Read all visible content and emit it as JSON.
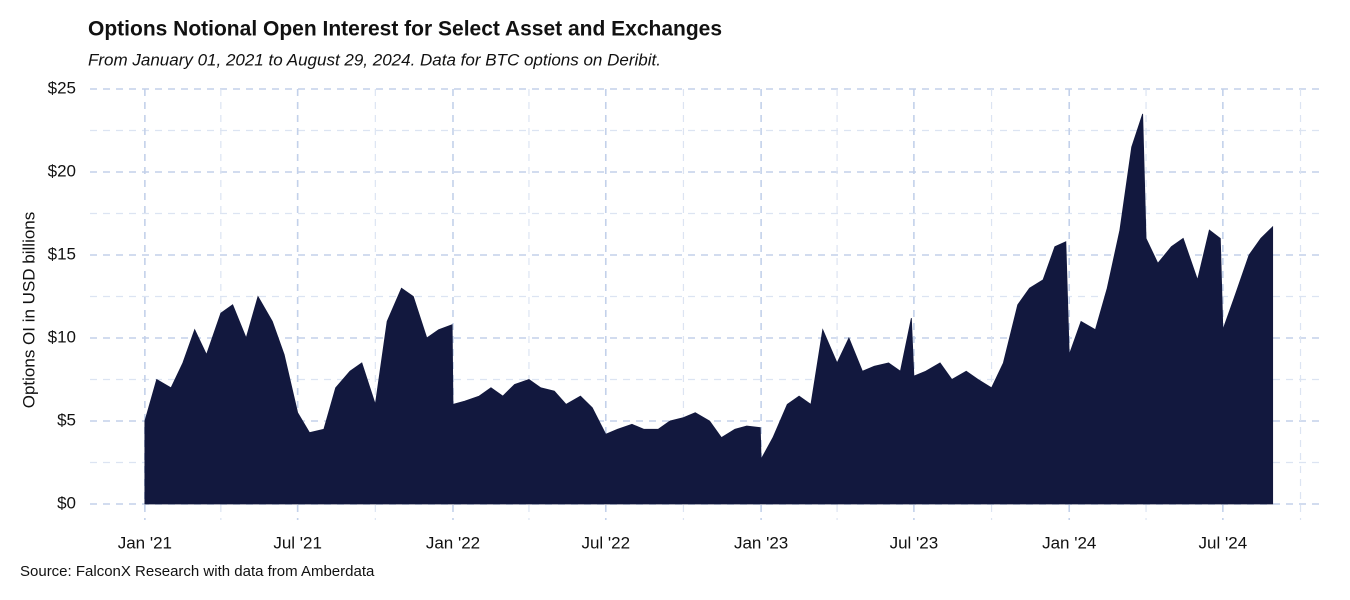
{
  "chart_data": {
    "type": "area",
    "title": "Options Notional Open Interest for Select Asset and Exchanges",
    "subtitle": "From January 01, 2021 to August 29, 2024. Data for BTC options on Deribit.",
    "y_label": "Options OI in USD billions",
    "source": "Source: FalconX Research with data from Amberdata",
    "x": [
      "2021-01-01",
      "2021-01-15",
      "2021-02-01",
      "2021-02-15",
      "2021-03-01",
      "2021-03-15",
      "2021-04-01",
      "2021-04-15",
      "2021-05-01",
      "2021-05-15",
      "2021-06-01",
      "2021-06-15",
      "2021-07-01",
      "2021-07-15",
      "2021-08-01",
      "2021-08-15",
      "2021-09-01",
      "2021-09-15",
      "2021-10-01",
      "2021-10-15",
      "2021-11-01",
      "2021-11-15",
      "2021-12-01",
      "2021-12-15",
      "2021-12-31",
      "2022-01-01",
      "2022-01-15",
      "2022-02-01",
      "2022-02-15",
      "2022-03-01",
      "2022-03-15",
      "2022-04-01",
      "2022-04-15",
      "2022-05-01",
      "2022-05-15",
      "2022-06-01",
      "2022-06-15",
      "2022-07-01",
      "2022-07-15",
      "2022-08-01",
      "2022-08-15",
      "2022-09-01",
      "2022-09-15",
      "2022-10-01",
      "2022-10-15",
      "2022-11-01",
      "2022-11-15",
      "2022-12-01",
      "2022-12-15",
      "2022-12-31",
      "2023-01-01",
      "2023-01-15",
      "2023-02-01",
      "2023-02-15",
      "2023-03-01",
      "2023-03-15",
      "2023-04-01",
      "2023-04-15",
      "2023-05-01",
      "2023-05-15",
      "2023-06-01",
      "2023-06-15",
      "2023-06-28",
      "2023-07-01",
      "2023-07-15",
      "2023-08-01",
      "2023-08-15",
      "2023-09-01",
      "2023-09-15",
      "2023-10-01",
      "2023-10-15",
      "2023-11-01",
      "2023-11-15",
      "2023-12-01",
      "2023-12-15",
      "2023-12-28",
      "2024-01-01",
      "2024-01-15",
      "2024-02-01",
      "2024-02-15",
      "2024-03-01",
      "2024-03-15",
      "2024-03-28",
      "2024-04-01",
      "2024-04-15",
      "2024-05-01",
      "2024-05-15",
      "2024-06-01",
      "2024-06-15",
      "2024-06-28",
      "2024-07-01",
      "2024-07-15",
      "2024-08-01",
      "2024-08-15",
      "2024-08-29"
    ],
    "series": [
      {
        "name": "BTC options OI",
        "color": "#12183e",
        "values": [
          5.0,
          7.5,
          7.0,
          8.5,
          10.5,
          9.0,
          11.5,
          12.0,
          10.0,
          12.5,
          11.0,
          9.0,
          5.5,
          4.3,
          4.5,
          7.0,
          8.0,
          8.5,
          6.0,
          11.0,
          13.0,
          12.5,
          10.0,
          10.5,
          10.8,
          6.0,
          6.2,
          6.5,
          7.0,
          6.5,
          7.2,
          7.5,
          7.0,
          6.8,
          6.0,
          6.5,
          5.8,
          4.2,
          4.5,
          4.8,
          4.5,
          4.5,
          5.0,
          5.2,
          5.5,
          5.0,
          4.0,
          4.5,
          4.7,
          4.6,
          2.7,
          4.0,
          6.0,
          6.5,
          6.0,
          10.5,
          8.5,
          10.0,
          8.0,
          8.3,
          8.5,
          8.0,
          11.2,
          7.7,
          8.0,
          8.5,
          7.5,
          8.0,
          7.5,
          7.0,
          8.5,
          12.0,
          13.0,
          13.5,
          15.5,
          15.8,
          9.0,
          11.0,
          10.5,
          13.0,
          16.5,
          21.5,
          23.5,
          16.0,
          14.5,
          15.5,
          16.0,
          13.5,
          16.5,
          16.0,
          10.5,
          12.5,
          15.0,
          16.0,
          16.7
        ]
      }
    ],
    "xlim": [
      "2020-10-28",
      "2024-10-30"
    ],
    "xticks": [
      {
        "value": "2021-01-01",
        "label": "Jan '21"
      },
      {
        "value": "2021-07-01",
        "label": "Jul '21"
      },
      {
        "value": "2022-01-01",
        "label": "Jan '22"
      },
      {
        "value": "2022-07-01",
        "label": "Jul '22"
      },
      {
        "value": "2023-01-01",
        "label": "Jan '23"
      },
      {
        "value": "2023-07-01",
        "label": "Jul '23"
      },
      {
        "value": "2024-01-01",
        "label": "Jan '24"
      },
      {
        "value": "2024-07-01",
        "label": "Jul '24"
      }
    ],
    "xminorticks": [
      "2021-04-01",
      "2021-10-01",
      "2022-04-01",
      "2022-10-01",
      "2023-04-01",
      "2023-10-01",
      "2024-04-01",
      "2024-10-01"
    ],
    "ylim": [
      0,
      25
    ],
    "yticks": [
      {
        "value": 0,
        "label": "$0"
      },
      {
        "value": 5,
        "label": "$5"
      },
      {
        "value": 10,
        "label": "$10"
      },
      {
        "value": 15,
        "label": "$15"
      },
      {
        "value": 20,
        "label": "$20"
      },
      {
        "value": 25,
        "label": "$25"
      }
    ],
    "yminorticks": [
      2.5,
      7.5,
      12.5,
      17.5,
      22.5
    ],
    "grid": true
  }
}
